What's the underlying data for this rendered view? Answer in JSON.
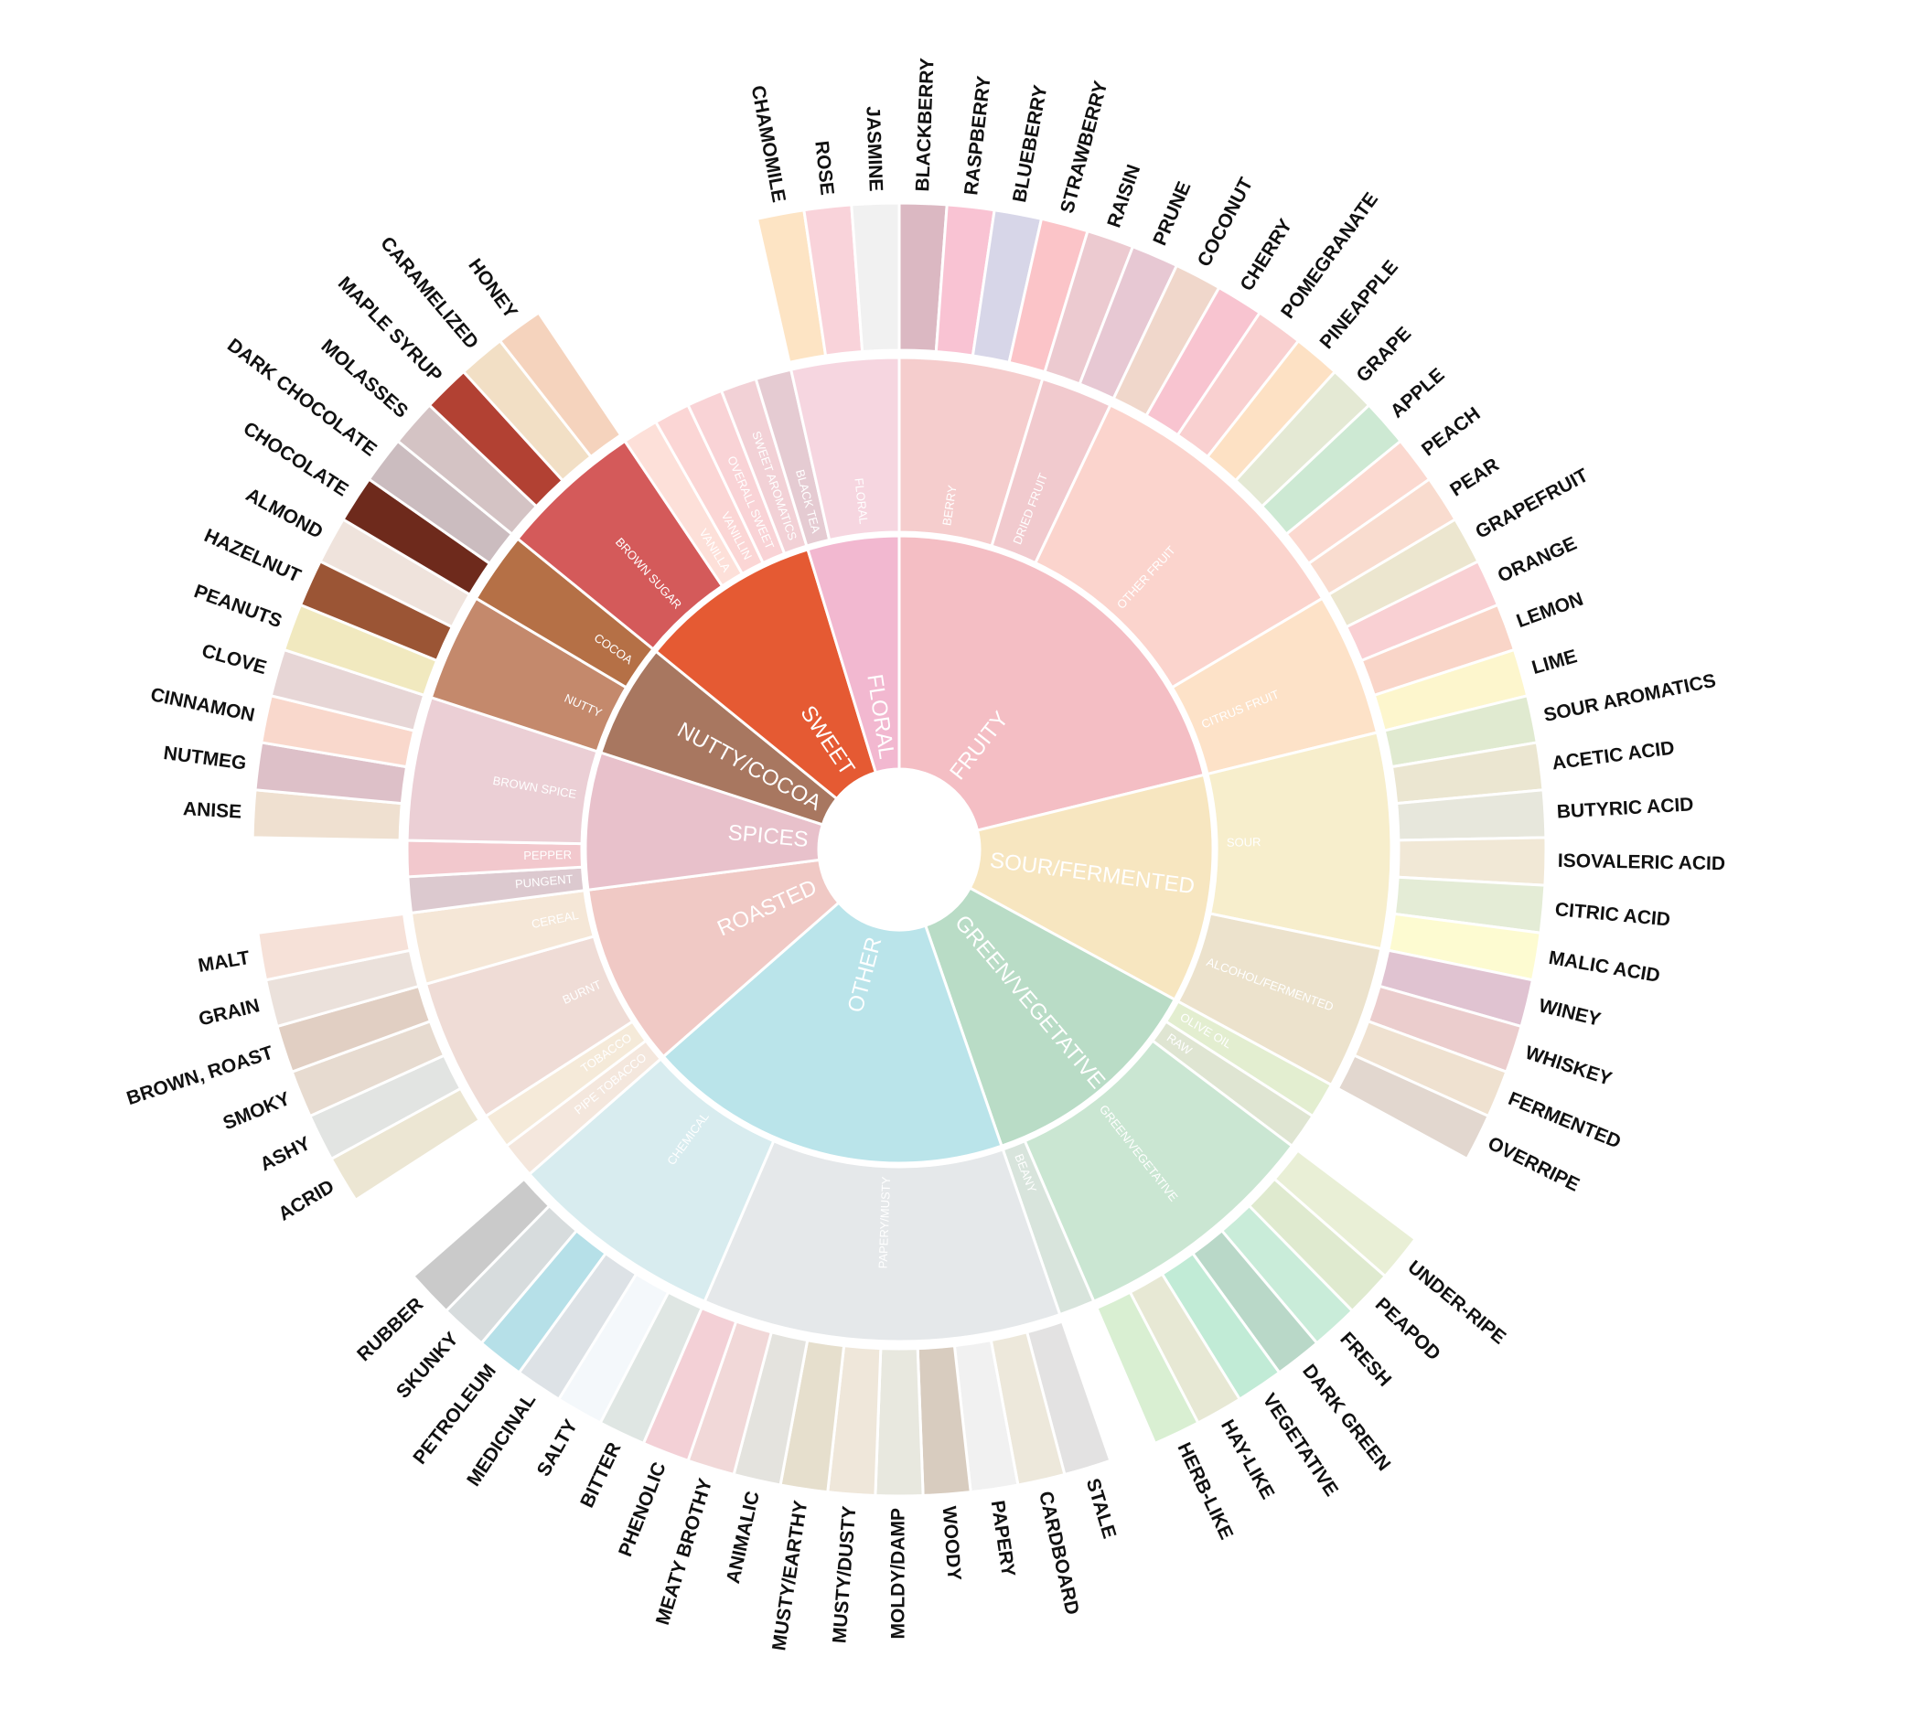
{
  "chart_data": {
    "type": "sunburst",
    "children": [
      {
        "name": "FRUITY",
        "color": "#f4bec4",
        "children": [
          {
            "name": "BERRY",
            "color": "#f5cdcd",
            "children": [
              {
                "name": "BLACKBERRY",
                "color": "#dbb8c2"
              },
              {
                "name": "RASPBERRY",
                "color": "#f9c3d3"
              },
              {
                "name": "BLUEBERRY",
                "color": "#d7d6e8"
              },
              {
                "name": "STRAWBERRY",
                "color": "#fbc4c8"
              }
            ]
          },
          {
            "name": "DRIED FRUIT",
            "color": "#f1cace",
            "children": [
              {
                "name": "RAISIN",
                "color": "#eccad0"
              },
              {
                "name": "PRUNE",
                "color": "#e7c8d3"
              }
            ]
          },
          {
            "name": "OTHER FRUIT",
            "color": "#fbd4cd",
            "children": [
              {
                "name": "COCONUT",
                "color": "#f0d7cb"
              },
              {
                "name": "CHERRY",
                "color": "#f8c4d0"
              },
              {
                "name": "POMEGRANATE",
                "color": "#f9d0d0"
              },
              {
                "name": "PINEAPPLE",
                "color": "#fde1c4"
              },
              {
                "name": "GRAPE",
                "color": "#e4e9d4"
              },
              {
                "name": "APPLE",
                "color": "#cde9d3"
              },
              {
                "name": "PEACH",
                "color": "#fbd9d0"
              },
              {
                "name": "PEAR",
                "color": "#f9dccf"
              }
            ]
          },
          {
            "name": "CITRUS FRUIT",
            "color": "#fde2c8",
            "children": [
              {
                "name": "GRAPEFRUIT",
                "color": "#ece6cf"
              },
              {
                "name": "ORANGE",
                "color": "#f9d0d3"
              },
              {
                "name": "LEMON",
                "color": "#f9d5c8"
              },
              {
                "name": "LIME",
                "color": "#fdf6cd"
              }
            ]
          }
        ]
      },
      {
        "name": "SOUR/FERMENTED",
        "color": "#f7e6c0",
        "children": [
          {
            "name": "SOUR",
            "color": "#f7eecc",
            "children": [
              {
                "name": "SOUR AROMATICS",
                "color": "#e0ead0"
              },
              {
                "name": "ACETIC ACID",
                "color": "#ebe6d1"
              },
              {
                "name": "BUTYRIC ACID",
                "color": "#e7e7dc"
              },
              {
                "name": "ISOVALERIC ACID",
                "color": "#f1e8d6"
              },
              {
                "name": "CITRIC ACID",
                "color": "#e4ecd6"
              },
              {
                "name": "MALIC ACID",
                "color": "#fdfbd1"
              }
            ]
          },
          {
            "name": "ALCOHOL/FERMENTED",
            "color": "#ece2cc",
            "children": [
              {
                "name": "WINEY",
                "color": "#e0c3d1"
              },
              {
                "name": "WHISKEY",
                "color": "#ebcdcd"
              },
              {
                "name": "FERMENTED",
                "color": "#efe1d0"
              },
              {
                "name": "OVERRIPE",
                "color": "#e2d7cf"
              }
            ]
          }
        ]
      },
      {
        "name": "GREEN/VEGETATIVE",
        "color": "#b9dcc6",
        "children": [
          {
            "name": "OLIVE OIL",
            "color": "#e3eed0"
          },
          {
            "name": "RAW",
            "color": "#dfe5d2"
          },
          {
            "name": "GREEN/VEGETATIVE",
            "color": "#cae6d2",
            "children": [
              {
                "name": "UNDER-RIPE",
                "color": "#e9efd6"
              },
              {
                "name": "PEAPOD",
                "color": "#dfeacf"
              },
              {
                "name": "FRESH",
                "color": "#c9ecd9"
              },
              {
                "name": "DARK GREEN",
                "color": "#b9d8c8"
              },
              {
                "name": "VEGETATIVE",
                "color": "#c1ebd6"
              },
              {
                "name": "HAY-LIKE",
                "color": "#e7e8d4"
              },
              {
                "name": "HERB-LIKE",
                "color": "#d9efd2"
              }
            ]
          },
          {
            "name": "BEANY",
            "color": "#d8e4dc"
          }
        ]
      },
      {
        "name": "OTHER",
        "color": "#bae4ea",
        "children": [
          {
            "name": "PAPERY/MUSTY",
            "color": "#e5e8ea",
            "children": [
              {
                "name": "STALE",
                "color": "#e3e2e2"
              },
              {
                "name": "CARDBOARD",
                "color": "#ede8db"
              },
              {
                "name": "PAPERY",
                "color": "#f1f1f1"
              },
              {
                "name": "WOODY",
                "color": "#d8ccbf"
              },
              {
                "name": "MOLDY/DAMP",
                "color": "#e8e8df"
              },
              {
                "name": "MUSTY/DUSTY",
                "color": "#efe7da"
              },
              {
                "name": "MUSTY/EARTHY",
                "color": "#e6dfcd"
              },
              {
                "name": "ANIMALIC",
                "color": "#e4e3de"
              },
              {
                "name": "MEATY BROTHY",
                "color": "#f1d8d8"
              },
              {
                "name": "PHENOLIC",
                "color": "#f3d0d6"
              }
            ]
          },
          {
            "name": "CHEMICAL",
            "color": "#d8ecef",
            "children": [
              {
                "name": "BITTER",
                "color": "#dfe6e3"
              },
              {
                "name": "SALTY",
                "color": "#f4f8fb"
              },
              {
                "name": "MEDICINAL",
                "color": "#dde2e6"
              },
              {
                "name": "PETROLEUM",
                "color": "#b6e0e8"
              },
              {
                "name": "SKUNKY",
                "color": "#d7dcdd"
              },
              {
                "name": "RUBBER",
                "color": "#cacaca"
              }
            ]
          }
        ]
      },
      {
        "name": "ROASTED",
        "color": "#f0c9c5",
        "children": [
          {
            "name": "PIPE TOBACCO",
            "color": "#f4e7dd"
          },
          {
            "name": "TOBACCO",
            "color": "#f5ead9"
          },
          {
            "name": "BURNT",
            "color": "#efdcd6",
            "children": [
              {
                "name": "ACRID",
                "color": "#ece6d3"
              },
              {
                "name": "ASHY",
                "color": "#e2e4e2"
              },
              {
                "name": "SMOKY",
                "color": "#e7dbd0"
              },
              {
                "name": "BROWN, ROAST",
                "color": "#e1cfc3"
              }
            ]
          },
          {
            "name": "CEREAL",
            "color": "#f5e7d7",
            "children": [
              {
                "name": "GRAIN",
                "color": "#ebe1db"
              },
              {
                "name": "MALT",
                "color": "#f6e1d8"
              }
            ]
          }
        ]
      },
      {
        "name": "SPICES",
        "color": "#e8c1cb",
        "children": [
          {
            "name": "PUNGENT",
            "color": "#dcc9cf"
          },
          {
            "name": "PEPPER",
            "color": "#f2c8cd"
          },
          {
            "name": "BROWN SPICE",
            "color": "#ebcfd5",
            "children": [
              {
                "name": "ANISE",
                "color": "#efe0d0"
              },
              {
                "name": "NUTMEG",
                "color": "#ddc0c8"
              },
              {
                "name": "CINNAMON",
                "color": "#f9d8cc"
              },
              {
                "name": "CLOVE",
                "color": "#e7d6d6"
              }
            ]
          }
        ]
      },
      {
        "name": "NUTTY/COCOA",
        "color": "#a87760",
        "children": [
          {
            "name": "NUTTY",
            "color": "#c4896c",
            "children": [
              {
                "name": "PEANUTS",
                "color": "#f1e9bf"
              },
              {
                "name": "HAZELNUT",
                "color": "#9b5535"
              },
              {
                "name": "ALMOND",
                "color": "#efe3dc"
              }
            ]
          },
          {
            "name": "COCOA",
            "color": "#b57046",
            "children": [
              {
                "name": "CHOCOLATE",
                "color": "#6e2a1c"
              },
              {
                "name": "DARK CHOCOLATE",
                "color": "#cbbcbf"
              }
            ]
          }
        ]
      },
      {
        "name": "SWEET",
        "color": "#e55a33",
        "children": [
          {
            "name": "BROWN SUGAR",
            "color": "#d45a5a",
            "children": [
              {
                "name": "MOLASSES",
                "color": "#d4c3c4"
              },
              {
                "name": "MAPLE SYRUP",
                "color": "#b24133"
              },
              {
                "name": "CARAMELIZED",
                "color": "#f2dfc5"
              },
              {
                "name": "HONEY",
                "color": "#f5d3bd"
              }
            ]
          },
          {
            "name": "VANILLA",
            "color": "#fde0d9"
          },
          {
            "name": "VANILLIN",
            "color": "#fbd6d5"
          },
          {
            "name": "OVERALL SWEET",
            "color": "#f9d3d6"
          },
          {
            "name": "SWEET AROMATICS",
            "color": "#f2d1d6"
          }
        ]
      },
      {
        "name": "FLORAL",
        "color": "#f2b8d0",
        "children": [
          {
            "name": "BLACK TEA",
            "color": "#e5cbd2"
          },
          {
            "name": "FLORAL",
            "color": "#f6d6e0",
            "children": [
              {
                "name": "CHAMOMILE",
                "color": "#fde4c4"
              },
              {
                "name": "ROSE",
                "color": "#f9d3da"
              },
              {
                "name": "JASMINE",
                "color": "#f1f1f1"
              }
            ]
          }
        ]
      }
    ]
  }
}
